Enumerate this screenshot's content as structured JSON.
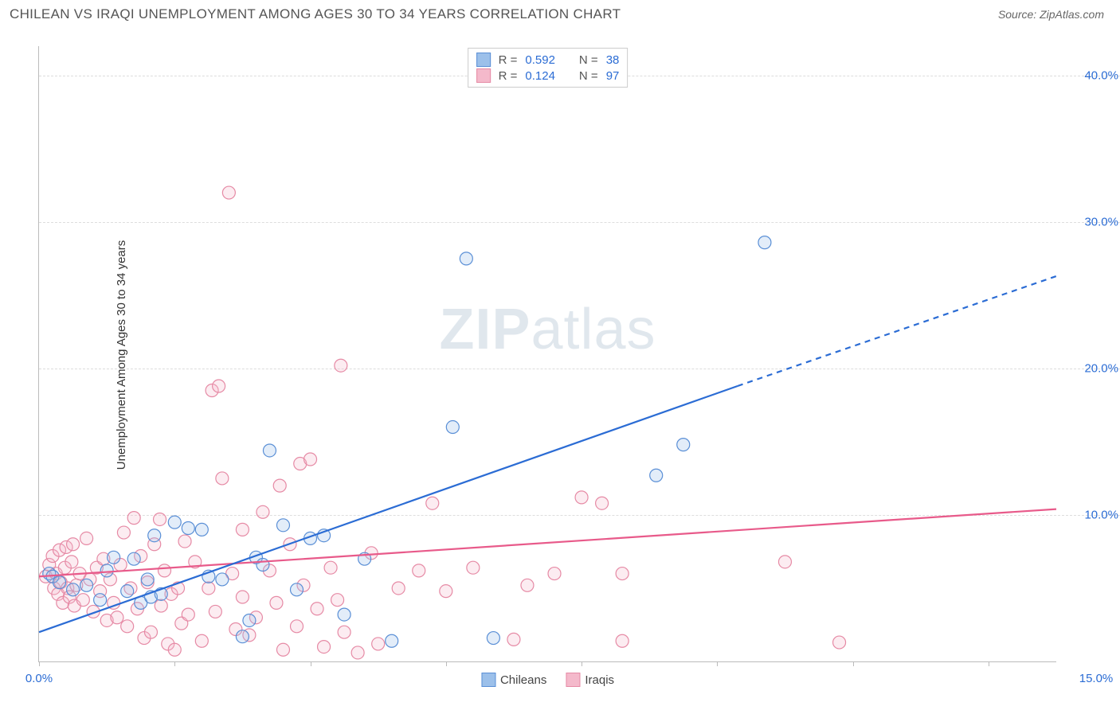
{
  "header": {
    "title": "CHILEAN VS IRAQI UNEMPLOYMENT AMONG AGES 30 TO 34 YEARS CORRELATION CHART",
    "source": "Source: ZipAtlas.com"
  },
  "chart": {
    "type": "scatter",
    "y_axis_label": "Unemployment Among Ages 30 to 34 years",
    "watermark": "ZIPatlas",
    "xlim": [
      0,
      15
    ],
    "ylim": [
      0,
      42
    ],
    "y_ticks": [
      10,
      20,
      30,
      40
    ],
    "y_tick_labels": [
      "10.0%",
      "20.0%",
      "30.0%",
      "40.0%"
    ],
    "y_tick_color": "#2b6cd4",
    "x_tick_positions": [
      0,
      2,
      4,
      6,
      8,
      10,
      12,
      14
    ],
    "x_min_label": "0.0%",
    "x_max_label": "15.0%",
    "x_label_color": "#2b6cd4",
    "grid_color": "#dddddd",
    "background_color": "#ffffff",
    "marker_radius": 8,
    "marker_stroke_width": 1.2,
    "marker_fill_opacity": 0.28,
    "line_width": 2.2,
    "series": {
      "chileans": {
        "label": "Chileans",
        "color_stroke": "#5a8fd6",
        "color_fill": "#9cc0ea",
        "line_color": "#2b6cd4",
        "R": "0.592",
        "N": "38",
        "trend": {
          "x1": 0,
          "y1": 2.0,
          "x2": 10.3,
          "y2": 18.8,
          "x2_ext": 15,
          "y2_ext": 26.3
        },
        "points": [
          [
            0.15,
            6.0
          ],
          [
            0.2,
            5.8
          ],
          [
            0.3,
            5.4
          ],
          [
            0.5,
            4.9
          ],
          [
            0.7,
            5.2
          ],
          [
            0.9,
            4.2
          ],
          [
            1.0,
            6.2
          ],
          [
            1.1,
            7.1
          ],
          [
            1.3,
            4.8
          ],
          [
            1.4,
            7.0
          ],
          [
            1.5,
            4.0
          ],
          [
            1.6,
            5.6
          ],
          [
            1.65,
            4.4
          ],
          [
            1.7,
            8.6
          ],
          [
            1.8,
            4.6
          ],
          [
            2.0,
            9.5
          ],
          [
            2.2,
            9.1
          ],
          [
            2.4,
            9.0
          ],
          [
            2.5,
            5.8
          ],
          [
            2.7,
            5.6
          ],
          [
            3.0,
            1.7
          ],
          [
            3.1,
            2.8
          ],
          [
            3.2,
            7.1
          ],
          [
            3.3,
            6.6
          ],
          [
            3.4,
            14.4
          ],
          [
            3.6,
            9.3
          ],
          [
            3.8,
            4.9
          ],
          [
            4.0,
            8.4
          ],
          [
            4.2,
            8.6
          ],
          [
            4.5,
            3.2
          ],
          [
            4.8,
            7.0
          ],
          [
            5.2,
            1.4
          ],
          [
            6.1,
            16.0
          ],
          [
            6.3,
            27.5
          ],
          [
            6.7,
            1.6
          ],
          [
            9.1,
            12.7
          ],
          [
            9.5,
            14.8
          ],
          [
            10.7,
            28.6
          ]
        ]
      },
      "iraqis": {
        "label": "Iraqis",
        "color_stroke": "#e68aa5",
        "color_fill": "#f4b9cb",
        "line_color": "#e85a8a",
        "R": "0.124",
        "N": "97",
        "trend": {
          "x1": 0,
          "y1": 5.8,
          "x2": 15,
          "y2": 10.4
        },
        "points": [
          [
            0.1,
            5.8
          ],
          [
            0.15,
            6.6
          ],
          [
            0.2,
            7.2
          ],
          [
            0.22,
            5.0
          ],
          [
            0.25,
            6.0
          ],
          [
            0.28,
            4.6
          ],
          [
            0.3,
            7.6
          ],
          [
            0.32,
            5.4
          ],
          [
            0.35,
            4.0
          ],
          [
            0.38,
            6.4
          ],
          [
            0.4,
            7.8
          ],
          [
            0.42,
            5.0
          ],
          [
            0.45,
            4.4
          ],
          [
            0.48,
            6.8
          ],
          [
            0.5,
            8.0
          ],
          [
            0.52,
            3.8
          ],
          [
            0.55,
            5.2
          ],
          [
            0.6,
            6.0
          ],
          [
            0.65,
            4.2
          ],
          [
            0.7,
            8.4
          ],
          [
            0.75,
            5.6
          ],
          [
            0.8,
            3.4
          ],
          [
            0.85,
            6.4
          ],
          [
            0.9,
            4.8
          ],
          [
            0.95,
            7.0
          ],
          [
            1.0,
            2.8
          ],
          [
            1.05,
            5.6
          ],
          [
            1.1,
            4.0
          ],
          [
            1.15,
            3.0
          ],
          [
            1.2,
            6.6
          ],
          [
            1.25,
            8.8
          ],
          [
            1.3,
            2.4
          ],
          [
            1.35,
            5.0
          ],
          [
            1.4,
            9.8
          ],
          [
            1.45,
            3.6
          ],
          [
            1.5,
            7.2
          ],
          [
            1.55,
            1.6
          ],
          [
            1.6,
            5.4
          ],
          [
            1.65,
            2.0
          ],
          [
            1.7,
            8.0
          ],
          [
            1.78,
            9.7
          ],
          [
            1.8,
            3.8
          ],
          [
            1.85,
            6.2
          ],
          [
            1.9,
            1.2
          ],
          [
            1.95,
            4.6
          ],
          [
            2.0,
            0.8
          ],
          [
            2.05,
            5.0
          ],
          [
            2.1,
            2.6
          ],
          [
            2.15,
            8.2
          ],
          [
            2.2,
            3.2
          ],
          [
            2.3,
            6.8
          ],
          [
            2.4,
            1.4
          ],
          [
            2.5,
            5.0
          ],
          [
            2.55,
            18.5
          ],
          [
            2.6,
            3.4
          ],
          [
            2.65,
            18.8
          ],
          [
            2.7,
            12.5
          ],
          [
            2.8,
            32.0
          ],
          [
            2.85,
            6.0
          ],
          [
            2.9,
            2.2
          ],
          [
            3.0,
            9.0
          ],
          [
            3.0,
            4.4
          ],
          [
            3.1,
            1.8
          ],
          [
            3.2,
            3.0
          ],
          [
            3.3,
            10.2
          ],
          [
            3.4,
            6.2
          ],
          [
            3.5,
            4.0
          ],
          [
            3.55,
            12.0
          ],
          [
            3.6,
            0.8
          ],
          [
            3.7,
            8.0
          ],
          [
            3.8,
            2.4
          ],
          [
            3.85,
            13.5
          ],
          [
            3.9,
            5.2
          ],
          [
            4.0,
            13.8
          ],
          [
            4.1,
            3.6
          ],
          [
            4.2,
            1.0
          ],
          [
            4.3,
            6.4
          ],
          [
            4.4,
            4.2
          ],
          [
            4.45,
            20.2
          ],
          [
            4.5,
            2.0
          ],
          [
            4.7,
            0.6
          ],
          [
            4.9,
            7.4
          ],
          [
            5.0,
            1.2
          ],
          [
            5.3,
            5.0
          ],
          [
            5.6,
            6.2
          ],
          [
            5.8,
            10.8
          ],
          [
            6.0,
            4.8
          ],
          [
            6.4,
            6.4
          ],
          [
            7.0,
            1.5
          ],
          [
            7.2,
            5.2
          ],
          [
            7.6,
            6.0
          ],
          [
            8.0,
            11.2
          ],
          [
            8.3,
            10.8
          ],
          [
            8.6,
            6.0
          ],
          [
            11.0,
            6.8
          ],
          [
            11.8,
            1.3
          ],
          [
            8.6,
            1.4
          ]
        ]
      }
    },
    "legend_top": {
      "rows": [
        {
          "series": "chileans",
          "r_label": "R =",
          "n_label": "N ="
        },
        {
          "series": "iraqis",
          "r_label": "R =",
          "n_label": "N ="
        }
      ]
    }
  }
}
